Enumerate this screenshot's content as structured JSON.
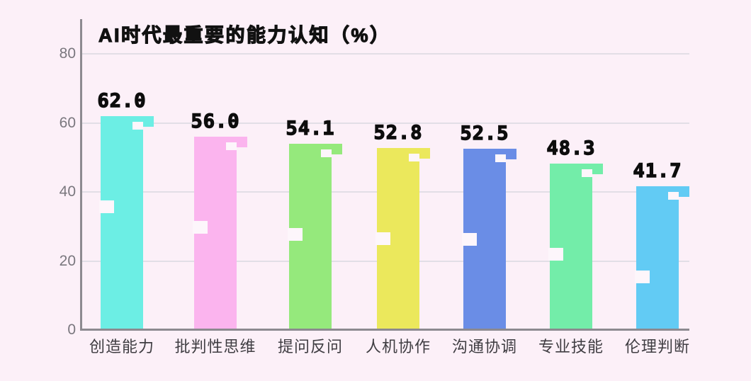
{
  "chart_data": {
    "type": "bar",
    "title": "AI时代最重要的能力认知（%）",
    "categories": [
      "创造能力",
      "批判性思维",
      "提问反问",
      "人机协作",
      "沟通协调",
      "专业技能",
      "伦理判断"
    ],
    "values": [
      62.0,
      56.0,
      54.1,
      52.8,
      52.5,
      48.3,
      41.7
    ],
    "value_labels": [
      "62.0",
      "56.0",
      "54.1",
      "52.8",
      "52.5",
      "48.3",
      "41.7"
    ],
    "bar_colors": [
      "#6ceee4",
      "#fbb4ee",
      "#95e97c",
      "#ebe85c",
      "#6a8de6",
      "#73eda9",
      "#62cbf4"
    ],
    "xlabel": "",
    "ylabel": "",
    "ylim": [
      0,
      80
    ],
    "yticks": [
      0,
      20,
      40,
      60,
      80
    ],
    "ytick_labels": [
      "0",
      "20",
      "40",
      "60",
      "80"
    ],
    "grid": true,
    "legend_position": "none",
    "style": "pixel-art"
  },
  "colors": {
    "background": "#fcf0f8",
    "gridline": "#e2dee6",
    "axis_line": "#8d8a90",
    "tick_label": "#7a777e",
    "category_label": "#3f3d42",
    "value_label": "#0d0d0d",
    "notch": "#fdf6fb"
  }
}
